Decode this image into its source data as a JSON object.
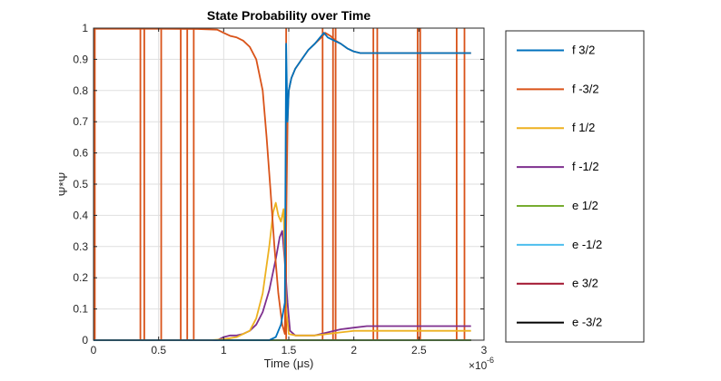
{
  "chart_data": {
    "type": "line",
    "title": "State Probability over Time",
    "xlabel": "Time (μs)",
    "ylabel": "Ψ*Ψ",
    "x_exponent_base": "×10",
    "x_exponent_power": "-6",
    "xlim": [
      0,
      3
    ],
    "ylim": [
      0,
      1
    ],
    "xticks": [
      "0",
      "0.5",
      "1",
      "1.5",
      "2",
      "2.5",
      "3"
    ],
    "yticks": [
      "0",
      "0.1",
      "0.2",
      "0.3",
      "0.4",
      "0.5",
      "0.6",
      "0.7",
      "0.8",
      "0.9",
      "1"
    ],
    "grid": true,
    "legend_position": "right-outside",
    "spikes": [
      0.01,
      0.36,
      0.39,
      0.52,
      0.67,
      0.72,
      0.77,
      1.48,
      1.76,
      1.84,
      1.86,
      2.15,
      2.18,
      2.49,
      2.51,
      2.79,
      2.85
    ],
    "series": [
      {
        "name": "f 3/2",
        "color": "#0072BD",
        "x": [
          0,
          1.35,
          1.4,
          1.44,
          1.47,
          1.48,
          1.49,
          1.5,
          1.52,
          1.55,
          1.6,
          1.65,
          1.7,
          1.74,
          1.77,
          1.8,
          1.85,
          1.9,
          1.95,
          2.0,
          2.05,
          2.2,
          2.5,
          2.8,
          2.9
        ],
        "y": [
          0,
          0,
          0.01,
          0.05,
          0.12,
          0.95,
          0.7,
          0.8,
          0.84,
          0.87,
          0.9,
          0.93,
          0.95,
          0.97,
          0.985,
          0.97,
          0.96,
          0.95,
          0.935,
          0.925,
          0.92,
          0.92,
          0.92,
          0.92,
          0.92
        ]
      },
      {
        "name": "f -3/2",
        "color": "#D95319",
        "x": [
          0,
          0.5,
          0.8,
          0.95,
          1.0,
          1.05,
          1.1,
          1.15,
          1.2,
          1.25,
          1.3,
          1.33,
          1.36,
          1.39,
          1.42,
          1.45,
          1.47,
          1.49,
          1.5,
          1.52,
          1.55,
          1.6,
          1.65,
          1.7,
          1.75,
          1.78,
          1.82,
          1.86,
          1.9,
          1.95,
          2.0,
          2.05,
          2.2,
          2.5,
          2.8,
          2.9
        ],
        "y": [
          0.998,
          0.998,
          0.997,
          0.995,
          0.985,
          0.975,
          0.97,
          0.96,
          0.94,
          0.9,
          0.8,
          0.65,
          0.48,
          0.3,
          0.15,
          0.05,
          0.02,
          0.7,
          0.8,
          0.84,
          0.87,
          0.9,
          0.93,
          0.95,
          0.97,
          0.985,
          0.975,
          0.96,
          0.95,
          0.935,
          0.925,
          0.92,
          0.92,
          0.92,
          0.92,
          0.92
        ]
      },
      {
        "name": "f 1/2",
        "color": "#EDB120",
        "x": [
          0,
          0.9,
          1.0,
          1.1,
          1.2,
          1.25,
          1.3,
          1.35,
          1.38,
          1.4,
          1.42,
          1.44,
          1.46,
          1.48,
          1.5,
          1.55,
          1.6,
          1.7,
          1.8,
          1.9,
          2.0,
          2.1,
          2.5,
          2.9
        ],
        "y": [
          0,
          0,
          0.003,
          0.01,
          0.03,
          0.07,
          0.15,
          0.3,
          0.41,
          0.44,
          0.4,
          0.38,
          0.42,
          0.1,
          0.02,
          0.015,
          0.015,
          0.015,
          0.02,
          0.025,
          0.03,
          0.03,
          0.03,
          0.03
        ]
      },
      {
        "name": "f -1/2",
        "color": "#7E2F8E",
        "x": [
          0,
          0.95,
          1.0,
          1.05,
          1.1,
          1.15,
          1.2,
          1.25,
          1.3,
          1.35,
          1.4,
          1.43,
          1.45,
          1.47,
          1.49,
          1.51,
          1.55,
          1.6,
          1.7,
          1.8,
          1.9,
          2.0,
          2.1,
          2.5,
          2.9
        ],
        "y": [
          0,
          0,
          0.01,
          0.015,
          0.015,
          0.02,
          0.03,
          0.05,
          0.09,
          0.16,
          0.26,
          0.33,
          0.35,
          0.25,
          0.12,
          0.03,
          0.015,
          0.015,
          0.015,
          0.025,
          0.035,
          0.04,
          0.045,
          0.045,
          0.045
        ]
      },
      {
        "name": "e 1/2",
        "color": "#77AC30",
        "x": [
          0,
          2.9
        ],
        "y": [
          0,
          0
        ]
      },
      {
        "name": "e -1/2",
        "color": "#4DBEEE",
        "x": [
          0,
          2.9
        ],
        "y": [
          0,
          0
        ]
      },
      {
        "name": "e 3/2",
        "color": "#A2142F",
        "x": [
          0,
          2.9
        ],
        "y": [
          0,
          0
        ]
      },
      {
        "name": "e -3/2",
        "color": "#000000",
        "x": [
          0,
          2.9
        ],
        "y": [
          0,
          0
        ]
      }
    ]
  }
}
